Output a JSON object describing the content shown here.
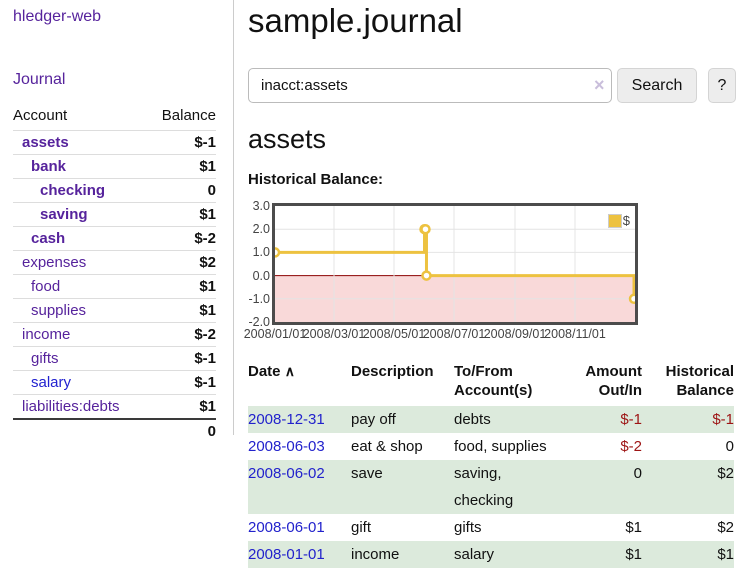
{
  "app": {
    "logo": "hledger-web",
    "nav_journal": "Journal"
  },
  "sidebar": {
    "header": {
      "account": "Account",
      "balance": "Balance"
    },
    "accounts": [
      {
        "name": "assets",
        "balance": "$-1"
      },
      {
        "name": "bank",
        "balance": "$1"
      },
      {
        "name": "checking",
        "balance": "0"
      },
      {
        "name": "saving",
        "balance": "$1"
      },
      {
        "name": "cash",
        "balance": "$-2"
      },
      {
        "name": "expenses",
        "balance": "$2"
      },
      {
        "name": "food",
        "balance": "$1"
      },
      {
        "name": "supplies",
        "balance": "$1"
      },
      {
        "name": "income",
        "balance": "$-2"
      },
      {
        "name": "gifts",
        "balance": "$-1"
      },
      {
        "name": "salary",
        "balance": "$-1"
      },
      {
        "name": "liabilities:debts",
        "balance": "$1"
      }
    ],
    "total": "0"
  },
  "main": {
    "title": "sample.journal",
    "search": {
      "value": "inacct:assets",
      "clear_icon": "×",
      "button": "Search",
      "help_button": "?"
    },
    "account_heading": "assets"
  },
  "chart_data": {
    "type": "line",
    "title": "Historical Balance:",
    "step": true,
    "series": [
      {
        "name": "$",
        "color": "#edc240",
        "points": [
          [
            "2008-01-01",
            1
          ],
          [
            "2008-06-01",
            2
          ],
          [
            "2008-06-02",
            2
          ],
          [
            "2008-06-03",
            0
          ],
          [
            "2008-12-31",
            -1
          ]
        ]
      }
    ],
    "legend": [
      {
        "name": "$",
        "color": "#edc240"
      }
    ],
    "legend_position": "top-right",
    "xrange": [
      "2008-01-01",
      "2009-01-01"
    ],
    "ylim": [
      -2,
      3
    ],
    "yticks": [
      3,
      2,
      1,
      0,
      -1,
      -2
    ],
    "xticks": [
      "2008/01/01",
      "2008/03/01",
      "2008/05/01",
      "2008/07/01",
      "2008/09/01",
      "2008/11/01"
    ],
    "grid": true,
    "gridline_color": "#e4e4e4",
    "zero_line_color": "#8b0000",
    "negative_fill": "#f9d9d9",
    "marker_fill": "#ffffff"
  },
  "transactions": {
    "headers": {
      "date": "Date",
      "sort_icon": "∧",
      "description": "Description",
      "account": "To/From Account(s)",
      "amount": "Amount Out/In",
      "balance": "Historical Balance"
    },
    "rows": [
      {
        "date": "2008-12-31",
        "description": "pay off",
        "account": "debts",
        "amount": "$-1",
        "balance": "$-1"
      },
      {
        "date": "2008-06-03",
        "description": "eat & shop",
        "account": "food, supplies",
        "amount": "$-2",
        "balance": "0"
      },
      {
        "date": "2008-06-02",
        "description": "save",
        "account": "saving,\nchecking",
        "amount": "0",
        "balance": "$2"
      },
      {
        "date": "2008-06-01",
        "description": "gift",
        "account": "gifts",
        "amount": "$1",
        "balance": "$2"
      },
      {
        "date": "2008-01-01",
        "description": "income",
        "account": "salary",
        "amount": "$1",
        "balance": "$1"
      }
    ]
  }
}
